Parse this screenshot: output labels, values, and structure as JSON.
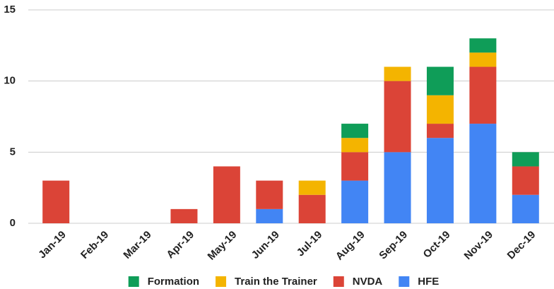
{
  "chart_data": {
    "type": "stacked_bar",
    "categories": [
      "Jan-19",
      "Feb-19",
      "Mar-19",
      "Apr-19",
      "May-19",
      "Jun-19",
      "Jul-19",
      "Aug-19",
      "Sep-19",
      "Oct-19",
      "Nov-19",
      "Dec-19"
    ],
    "series": [
      {
        "name": "Formation",
        "color": "#0f9d58",
        "values": [
          0,
          0,
          0,
          0,
          0,
          0,
          0,
          1,
          0,
          2,
          1,
          1
        ]
      },
      {
        "name": "Train the Trainer",
        "color": "#f4b400",
        "values": [
          0,
          0,
          0,
          0,
          0,
          0,
          1,
          1,
          1,
          2,
          1,
          0
        ]
      },
      {
        "name": "NVDA",
        "color": "#db4437",
        "values": [
          3,
          0,
          0,
          1,
          4,
          2,
          2,
          2,
          5,
          1,
          4,
          2
        ]
      },
      {
        "name": "HFE",
        "color": "#4285f4",
        "values": [
          0,
          0,
          0,
          0,
          0,
          1,
          0,
          3,
          5,
          6,
          7,
          2
        ]
      }
    ],
    "ylim": [
      0,
      15
    ],
    "yticks": [
      0,
      5,
      10,
      15
    ],
    "grid": true,
    "legend": "bottom"
  }
}
